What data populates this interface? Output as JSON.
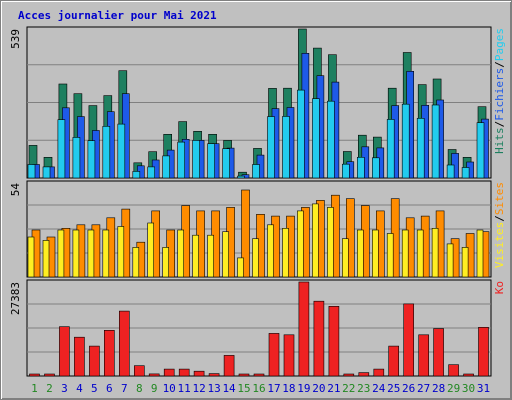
{
  "title": "Acces journalier pour Mai 2021",
  "colors": {
    "background": "#c0c0c0",
    "panel": "#c0c0c0",
    "grid": "#808080",
    "title": "#0000cc",
    "pages": "#1e8060",
    "hits": "#22ccee",
    "files": "#1e5ae8",
    "visits": "#ff8c00",
    "sites": "#ffee22",
    "ko": "#ee2222",
    "day_weekday": "#0000cc",
    "day_weekend": "#228822"
  },
  "chart_data": [
    {
      "type": "bar",
      "name": "hits-files-pages",
      "categories": [
        "1",
        "2",
        "3",
        "4",
        "5",
        "6",
        "7",
        "8",
        "9",
        "10",
        "11",
        "12",
        "13",
        "14",
        "15",
        "16",
        "17",
        "18",
        "19",
        "20",
        "21",
        "22",
        "23",
        "24",
        "25",
        "26",
        "27",
        "28",
        "29",
        "30",
        "31"
      ],
      "ymax_label": "539",
      "ylim": [
        0,
        539
      ],
      "right_label": [
        "Pages",
        "/",
        "Fichiers",
        "/",
        "Hits"
      ],
      "series": [
        {
          "name": "Pages",
          "values": [
            118,
            75,
            340,
            305,
            262,
            298,
            388,
            55,
            95,
            158,
            204,
            169,
            158,
            136,
            21,
            107,
            324,
            325,
            539,
            470,
            446,
            96,
            155,
            148,
            325,
            454,
            338,
            358,
            103,
            75,
            258
          ]
        },
        {
          "name": "Fichiers",
          "values": [
            49,
            40,
            254,
            222,
            172,
            240,
            305,
            44,
            65,
            101,
            140,
            136,
            124,
            108,
            12,
            83,
            251,
            255,
            451,
            370,
            347,
            59,
            113,
            109,
            262,
            386,
            263,
            282,
            89,
            58,
            213
          ]
        },
        {
          "name": "Hits",
          "values": [
            49,
            40,
            211,
            147,
            135,
            187,
            195,
            24,
            40,
            80,
            130,
            136,
            124,
            106,
            7,
            49,
            222,
            223,
            318,
            287,
            278,
            50,
            75,
            73,
            212,
            267,
            216,
            264,
            47,
            38,
            200
          ]
        }
      ]
    },
    {
      "type": "bar",
      "name": "visits-sites",
      "categories": [
        "1",
        "2",
        "3",
        "4",
        "5",
        "6",
        "7",
        "8",
        "9",
        "10",
        "11",
        "12",
        "13",
        "14",
        "15",
        "16",
        "17",
        "18",
        "19",
        "20",
        "21",
        "22",
        "23",
        "24",
        "25",
        "26",
        "27",
        "28",
        "29",
        "30",
        "31"
      ],
      "ymax_label": "54",
      "ylim": [
        0,
        54
      ],
      "right_label": [
        "Sites",
        "/",
        "Visites"
      ],
      "series": [
        {
          "name": "Visites",
          "values": [
            27,
            23,
            28,
            30,
            30,
            34,
            39,
            20,
            38,
            27,
            41,
            38,
            38,
            40,
            50,
            36,
            35,
            35,
            40,
            44,
            47,
            45,
            41,
            38,
            45,
            34,
            35,
            38,
            22,
            25,
            26
          ]
        },
        {
          "name": "Sites",
          "values": [
            23,
            21,
            27,
            27,
            27,
            27,
            29,
            17,
            31,
            17,
            27,
            24,
            24,
            26,
            11,
            22,
            30,
            28,
            38,
            42,
            40,
            22,
            27,
            27,
            25,
            27,
            27,
            28,
            19,
            17,
            27
          ]
        }
      ]
    },
    {
      "type": "bar",
      "name": "kb",
      "categories": [
        "1",
        "2",
        "3",
        "4",
        "5",
        "6",
        "7",
        "8",
        "9",
        "10",
        "11",
        "12",
        "13",
        "14",
        "15",
        "16",
        "17",
        "18",
        "19",
        "20",
        "21",
        "22",
        "23",
        "24",
        "25",
        "26",
        "27",
        "28",
        "29",
        "30",
        "31"
      ],
      "ymax_label": "27383",
      "ylim": [
        0,
        27383
      ],
      "right_label": [
        "Ko"
      ],
      "series": [
        {
          "name": "Ko",
          "values": [
            200,
            200,
            14350,
            11300,
            8700,
            13300,
            18900,
            3000,
            600,
            2000,
            2000,
            1400,
            700,
            6000,
            200,
            200,
            12400,
            12000,
            27383,
            21800,
            20300,
            200,
            1000,
            2000,
            8700,
            21000,
            12000,
            13800,
            3300,
            400,
            14200
          ]
        }
      ]
    }
  ],
  "weekend_days": [
    "1",
    "2",
    "8",
    "9",
    "15",
    "16",
    "22",
    "23",
    "29",
    "30"
  ]
}
